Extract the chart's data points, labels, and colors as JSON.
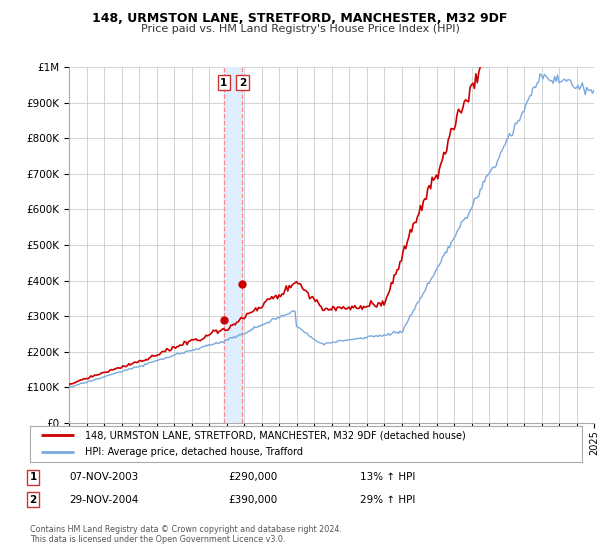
{
  "title": "148, URMSTON LANE, STRETFORD, MANCHESTER, M32 9DF",
  "subtitle": "Price paid vs. HM Land Registry's House Price Index (HPI)",
  "legend_line1": "148, URMSTON LANE, STRETFORD, MANCHESTER, M32 9DF (detached house)",
  "legend_line2": "HPI: Average price, detached house, Trafford",
  "transaction1_date": "07-NOV-2003",
  "transaction1_price": "£290,000",
  "transaction1_hpi": "13% ↑ HPI",
  "transaction1_year": 2003.85,
  "transaction1_value": 290000,
  "transaction2_date": "29-NOV-2004",
  "transaction2_price": "£390,000",
  "transaction2_hpi": "29% ↑ HPI",
  "transaction2_year": 2004.91,
  "transaction2_value": 390000,
  "hpi_color": "#7aaadd",
  "price_color": "#cc0000",
  "marker_color": "#cc0000",
  "vband_color": "#ddeeff",
  "vline_color": "#ff8888",
  "grid_color": "#cccccc",
  "bg_color": "#ffffff",
  "ylim": [
    0,
    1000000
  ],
  "xlim_start": 1995,
  "xlim_end": 2025,
  "footnote1": "Contains HM Land Registry data © Crown copyright and database right 2024.",
  "footnote2": "This data is licensed under the Open Government Licence v3.0."
}
